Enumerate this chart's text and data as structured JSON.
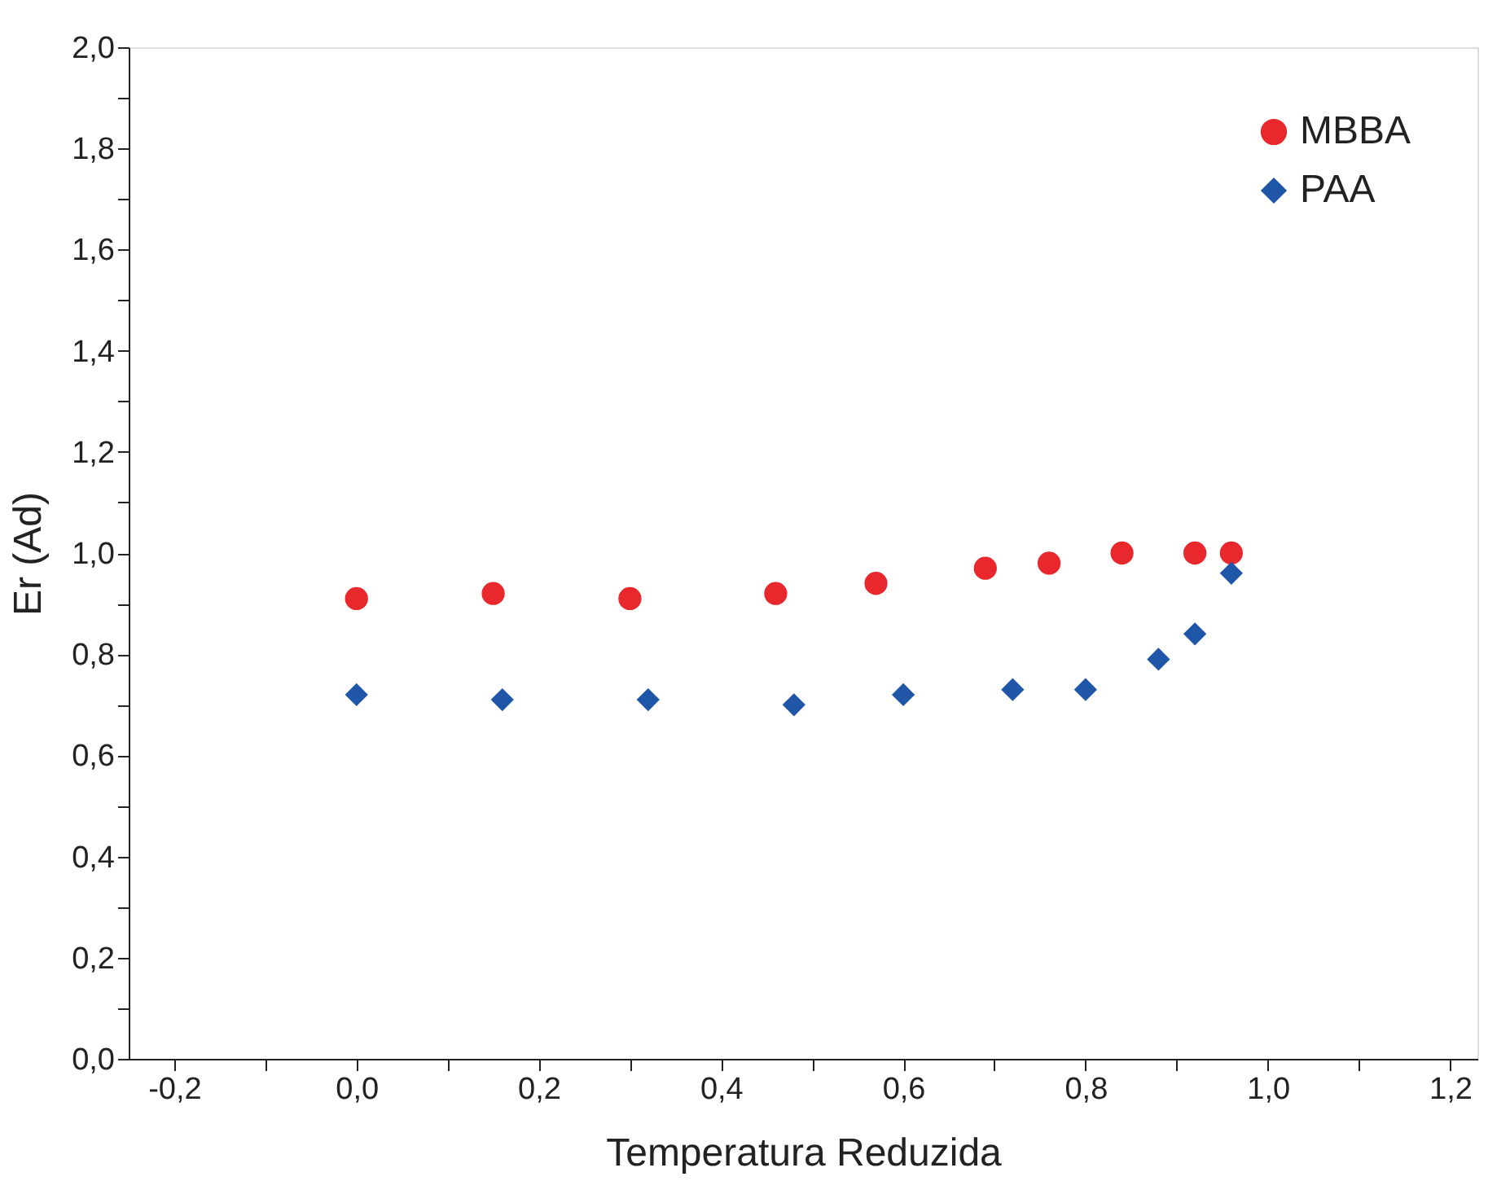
{
  "chart_data": {
    "type": "scatter",
    "xlabel": "Temperatura Reduzida",
    "ylabel": "Er (Ad)",
    "legend": "top right",
    "grid": false,
    "xlim": [
      -0.25,
      1.23
    ],
    "ylim": [
      0,
      2.0
    ],
    "xticks": [
      {
        "value": -0.2,
        "label": "-0,2"
      },
      {
        "value": -0.1,
        "label": null
      },
      {
        "value": 0,
        "label": "0,0"
      },
      {
        "value": 0.1,
        "label": null
      },
      {
        "value": 0.2,
        "label": "0,2"
      },
      {
        "value": 0.3,
        "label": null
      },
      {
        "value": 0.4,
        "label": "0,4"
      },
      {
        "value": 0.5,
        "label": null
      },
      {
        "value": 0.6,
        "label": "0,6"
      },
      {
        "value": 0.7,
        "label": null
      },
      {
        "value": 0.8,
        "label": "0,8"
      },
      {
        "value": 0.9,
        "label": null
      },
      {
        "value": 1.0,
        "label": "1,0"
      },
      {
        "value": 1.1,
        "label": null
      },
      {
        "value": 1.2,
        "label": "1,2"
      }
    ],
    "yticks": [
      {
        "value": 0,
        "label": "0,0"
      },
      {
        "value": 0.1,
        "label": null
      },
      {
        "value": 0.2,
        "label": "0,2"
      },
      {
        "value": 0.3,
        "label": null
      },
      {
        "value": 0.4,
        "label": "0,4"
      },
      {
        "value": 0.5,
        "label": null
      },
      {
        "value": 0.6,
        "label": "0,6"
      },
      {
        "value": 0.7,
        "label": null
      },
      {
        "value": 0.8,
        "label": "0,8"
      },
      {
        "value": 0.9,
        "label": null
      },
      {
        "value": 1.0,
        "label": "1,0"
      },
      {
        "value": 1.1,
        "label": null
      },
      {
        "value": 1.2,
        "label": "1,2"
      },
      {
        "value": 1.3,
        "label": null
      },
      {
        "value": 1.4,
        "label": "1,4"
      },
      {
        "value": 1.5,
        "label": null
      },
      {
        "value": 1.6,
        "label": "1,6"
      },
      {
        "value": 1.7,
        "label": null
      },
      {
        "value": 1.8,
        "label": "1,8"
      },
      {
        "value": 1.9,
        "label": null
      },
      {
        "value": 2.0,
        "label": "2,0"
      }
    ],
    "series": [
      {
        "name": "MBBA",
        "color": "#e8282c",
        "marker": "circle",
        "x": [
          0,
          0.15,
          0.3,
          0.46,
          0.57,
          0.69,
          0.76,
          0.84,
          0.92,
          0.96
        ],
        "values": [
          0.91,
          0.92,
          0.91,
          0.92,
          0.94,
          0.97,
          0.98,
          1.0,
          1.0,
          1.0
        ]
      },
      {
        "name": "PAA",
        "color": "#1f56a8",
        "marker": "diamond",
        "x": [
          0,
          0.16,
          0.32,
          0.48,
          0.6,
          0.72,
          0.8,
          0.88,
          0.92,
          0.96
        ],
        "values": [
          0.72,
          0.71,
          0.71,
          0.7,
          0.72,
          0.73,
          0.73,
          0.79,
          0.84,
          0.96
        ]
      }
    ]
  }
}
